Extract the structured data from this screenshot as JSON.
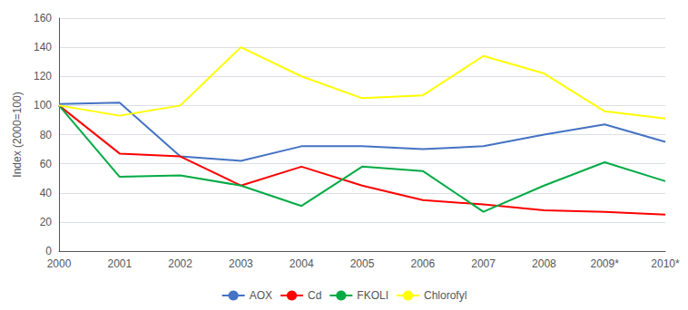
{
  "chart_data": {
    "type": "line",
    "ylabel": "Index (2000=100)",
    "categories": [
      "2000",
      "2001",
      "2002",
      "2003",
      "2004",
      "2005",
      "2006",
      "2007",
      "2008",
      "2009*",
      "2010*"
    ],
    "series": [
      {
        "name": "AOX",
        "color": "#4472C4",
        "values": [
          101,
          102,
          65,
          62,
          72,
          72,
          70,
          72,
          80,
          87,
          75
        ]
      },
      {
        "name": "Cd",
        "color": "#FF0000",
        "values": [
          100,
          67,
          65,
          45,
          58,
          45,
          35,
          32,
          28,
          27,
          25
        ]
      },
      {
        "name": "FKOLI",
        "color": "#00AA44",
        "values": [
          100,
          51,
          52,
          45,
          31,
          58,
          55,
          27,
          45,
          61,
          48
        ]
      },
      {
        "name": "Chlorofyl",
        "color": "#FFFF00",
        "values": [
          100,
          93,
          100,
          140,
          120,
          105,
          107,
          134,
          122,
          96,
          91
        ]
      }
    ],
    "ylim": [
      0,
      160
    ],
    "yticks": [
      0,
      20,
      40,
      60,
      80,
      100,
      120,
      140,
      160
    ],
    "grid": true,
    "legend": "bottom"
  }
}
